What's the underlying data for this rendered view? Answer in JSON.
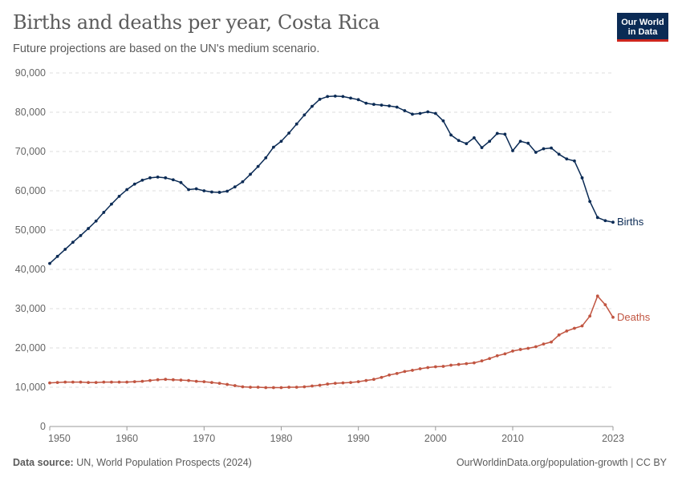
{
  "header": {
    "title": "Births and deaths per year, Costa Rica",
    "subtitle": "Future projections are based on the UN's medium scenario."
  },
  "logo": {
    "line1": "Our World",
    "line2": "in Data",
    "bg_color": "#0b2b55",
    "accent_color": "#ce261e"
  },
  "footer": {
    "source_label": "Data source:",
    "source_text": "UN, World Population Prospects (2024)",
    "url_text": "OurWorldinData.org/population-growth | CC BY"
  },
  "chart_data": {
    "type": "line",
    "title": "Births and deaths per year, Costa Rica",
    "subtitle": "Future projections are based on the UN's medium scenario.",
    "xlim": [
      1950,
      2023
    ],
    "ylim": [
      0,
      90000
    ],
    "x_ticks": [
      1950,
      1960,
      1970,
      1980,
      1990,
      2000,
      2010,
      2023
    ],
    "y_ticks": [
      0,
      10000,
      20000,
      30000,
      40000,
      50000,
      60000,
      70000,
      80000,
      90000
    ],
    "y_tick_labels": [
      "0",
      "10,000",
      "20,000",
      "30,000",
      "40,000",
      "50,000",
      "60,000",
      "70,000",
      "80,000",
      "90,000"
    ],
    "grid": "horizontal dashed",
    "legend": "inline labels at line ends",
    "series": [
      {
        "name": "Births",
        "color": "#0b2b55",
        "x": [
          1950,
          1951,
          1952,
          1953,
          1954,
          1955,
          1956,
          1957,
          1958,
          1959,
          1960,
          1961,
          1962,
          1963,
          1964,
          1965,
          1966,
          1967,
          1968,
          1969,
          1970,
          1971,
          1972,
          1973,
          1974,
          1975,
          1976,
          1977,
          1978,
          1979,
          1980,
          1981,
          1982,
          1983,
          1984,
          1985,
          1986,
          1987,
          1988,
          1989,
          1990,
          1991,
          1992,
          1993,
          1994,
          1995,
          1996,
          1997,
          1998,
          1999,
          2000,
          2001,
          2002,
          2003,
          2004,
          2005,
          2006,
          2007,
          2008,
          2009,
          2010,
          2011,
          2012,
          2013,
          2014,
          2015,
          2016,
          2017,
          2018,
          2019,
          2020,
          2021,
          2022,
          2023
        ],
        "values": [
          41500,
          43300,
          45100,
          46900,
          48600,
          50400,
          52300,
          54500,
          56600,
          58600,
          60300,
          61700,
          62700,
          63300,
          63500,
          63300,
          62800,
          62100,
          60300,
          60500,
          60000,
          59700,
          59600,
          59900,
          61000,
          62300,
          64200,
          66200,
          68400,
          71100,
          72600,
          74700,
          77000,
          79300,
          81500,
          83300,
          84000,
          84100,
          84000,
          83600,
          83200,
          82300,
          82000,
          81800,
          81600,
          81300,
          80400,
          79500,
          79700,
          80100,
          79700,
          77800,
          74200,
          72800,
          72000,
          73500,
          71000,
          72600,
          74600,
          74400,
          70200,
          72600,
          72100,
          69800,
          70700,
          70900,
          69300,
          68100,
          67600,
          63300,
          57300,
          53200,
          52400,
          52000
        ]
      },
      {
        "name": "Deaths",
        "color": "#c15541",
        "x": [
          1950,
          1951,
          1952,
          1953,
          1954,
          1955,
          1956,
          1957,
          1958,
          1959,
          1960,
          1961,
          1962,
          1963,
          1964,
          1965,
          1966,
          1967,
          1968,
          1969,
          1970,
          1971,
          1972,
          1973,
          1974,
          1975,
          1976,
          1977,
          1978,
          1979,
          1980,
          1981,
          1982,
          1983,
          1984,
          1985,
          1986,
          1987,
          1988,
          1989,
          1990,
          1991,
          1992,
          1993,
          1994,
          1995,
          1996,
          1997,
          1998,
          1999,
          2000,
          2001,
          2002,
          2003,
          2004,
          2005,
          2006,
          2007,
          2008,
          2009,
          2010,
          2011,
          2012,
          2013,
          2014,
          2015,
          2016,
          2017,
          2018,
          2019,
          2020,
          2021,
          2022,
          2023
        ],
        "values": [
          11100,
          11200,
          11300,
          11300,
          11300,
          11200,
          11200,
          11300,
          11300,
          11300,
          11300,
          11400,
          11500,
          11700,
          11900,
          12000,
          11900,
          11800,
          11700,
          11500,
          11400,
          11200,
          11000,
          10700,
          10400,
          10100,
          10000,
          10000,
          9900,
          9900,
          9900,
          10000,
          10000,
          10100,
          10300,
          10500,
          10800,
          11000,
          11100,
          11200,
          11400,
          11700,
          12000,
          12500,
          13100,
          13500,
          14000,
          14300,
          14700,
          15000,
          15200,
          15300,
          15600,
          15800,
          16000,
          16200,
          16700,
          17300,
          18000,
          18500,
          19200,
          19600,
          19900,
          20300,
          21000,
          21500,
          23300,
          24300,
          25000,
          25600,
          28100,
          33200,
          31000,
          27800
        ]
      }
    ]
  }
}
